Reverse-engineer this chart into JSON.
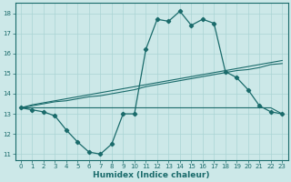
{
  "xlabel": "Humidex (Indice chaleur)",
  "x": [
    0,
    1,
    2,
    3,
    4,
    5,
    6,
    7,
    8,
    9,
    10,
    11,
    12,
    13,
    14,
    15,
    16,
    17,
    18,
    19,
    20,
    21,
    22,
    23
  ],
  "line1": [
    13.3,
    13.2,
    13.1,
    12.9,
    12.2,
    11.6,
    11.1,
    11.0,
    11.5,
    13.0,
    13.0,
    16.2,
    17.7,
    17.6,
    18.1,
    17.4,
    17.7,
    17.5,
    15.1,
    14.8,
    14.2,
    13.4,
    13.1,
    13.0
  ],
  "line2": [
    13.3,
    13.3,
    13.3,
    13.3,
    13.3,
    13.3,
    13.3,
    13.3,
    13.3,
    13.3,
    13.3,
    13.3,
    13.3,
    13.3,
    13.3,
    13.3,
    13.3,
    13.3,
    13.3,
    13.3,
    13.3,
    13.3,
    13.3,
    13.0
  ],
  "line3": [
    13.3,
    13.4,
    13.5,
    13.6,
    13.65,
    13.75,
    13.85,
    13.9,
    14.0,
    14.1,
    14.2,
    14.35,
    14.45,
    14.55,
    14.65,
    14.75,
    14.85,
    14.95,
    15.05,
    15.15,
    15.2,
    15.3,
    15.45,
    15.5
  ],
  "line4": [
    13.3,
    13.45,
    13.55,
    13.65,
    13.75,
    13.85,
    13.95,
    14.05,
    14.15,
    14.25,
    14.35,
    14.45,
    14.55,
    14.65,
    14.75,
    14.85,
    14.95,
    15.05,
    15.15,
    15.25,
    15.35,
    15.45,
    15.55,
    15.65
  ],
  "color": "#1a6b6b",
  "bg_color": "#cce8e8",
  "grid_color": "#aad4d4",
  "ylim": [
    10.7,
    18.5
  ],
  "xlim": [
    -0.5,
    23.5
  ],
  "yticks": [
    11,
    12,
    13,
    14,
    15,
    16,
    17,
    18
  ],
  "xticks": [
    0,
    1,
    2,
    3,
    4,
    5,
    6,
    7,
    8,
    9,
    10,
    11,
    12,
    13,
    14,
    15,
    16,
    17,
    18,
    19,
    20,
    21,
    22,
    23
  ],
  "tick_fontsize": 5.0,
  "xlabel_fontsize": 6.5
}
